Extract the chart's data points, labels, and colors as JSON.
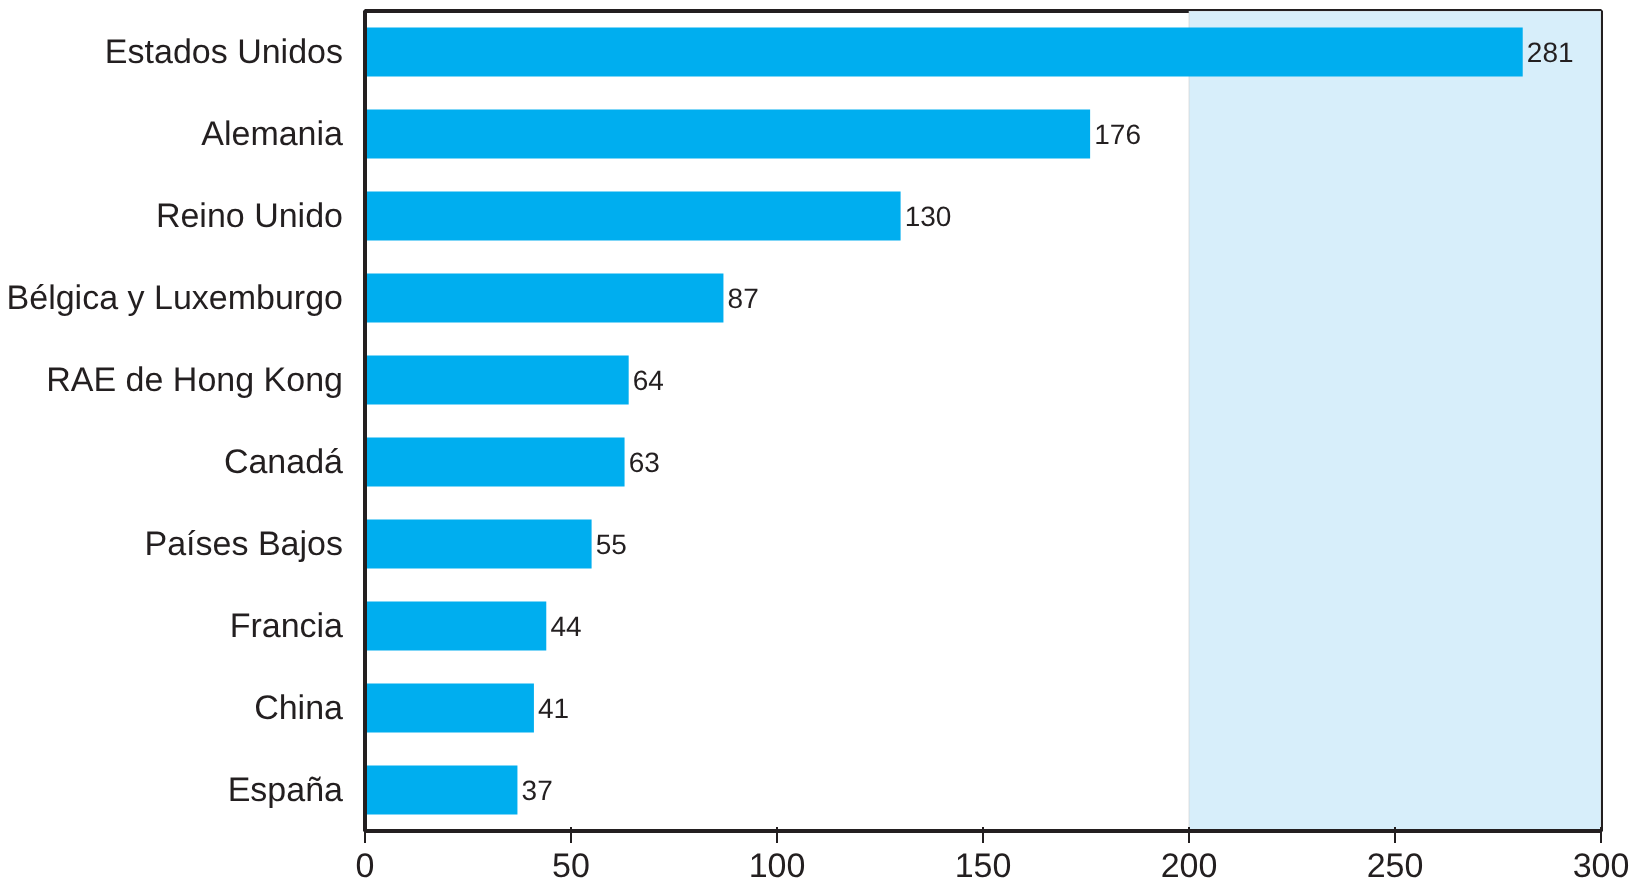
{
  "chart_data": {
    "type": "bar",
    "orientation": "horizontal",
    "categories": [
      "Estados Unidos",
      "Alemania",
      "Reino Unido",
      "Bélgica y Luxemburgo",
      "RAE de Hong Kong",
      "Canadá",
      "Países Bajos",
      "Francia",
      "China",
      "España"
    ],
    "values": [
      281,
      176,
      130,
      87,
      64,
      63,
      55,
      44,
      41,
      37
    ],
    "color": "#00aeef",
    "xlim": [
      0,
      300
    ],
    "xticks": [
      0,
      50,
      100,
      150,
      200,
      250,
      300
    ],
    "data_labels": true,
    "grid": false,
    "bands": [
      {
        "axis": "x",
        "from": 200,
        "to": 300,
        "color": "#d7eefa"
      }
    ]
  }
}
